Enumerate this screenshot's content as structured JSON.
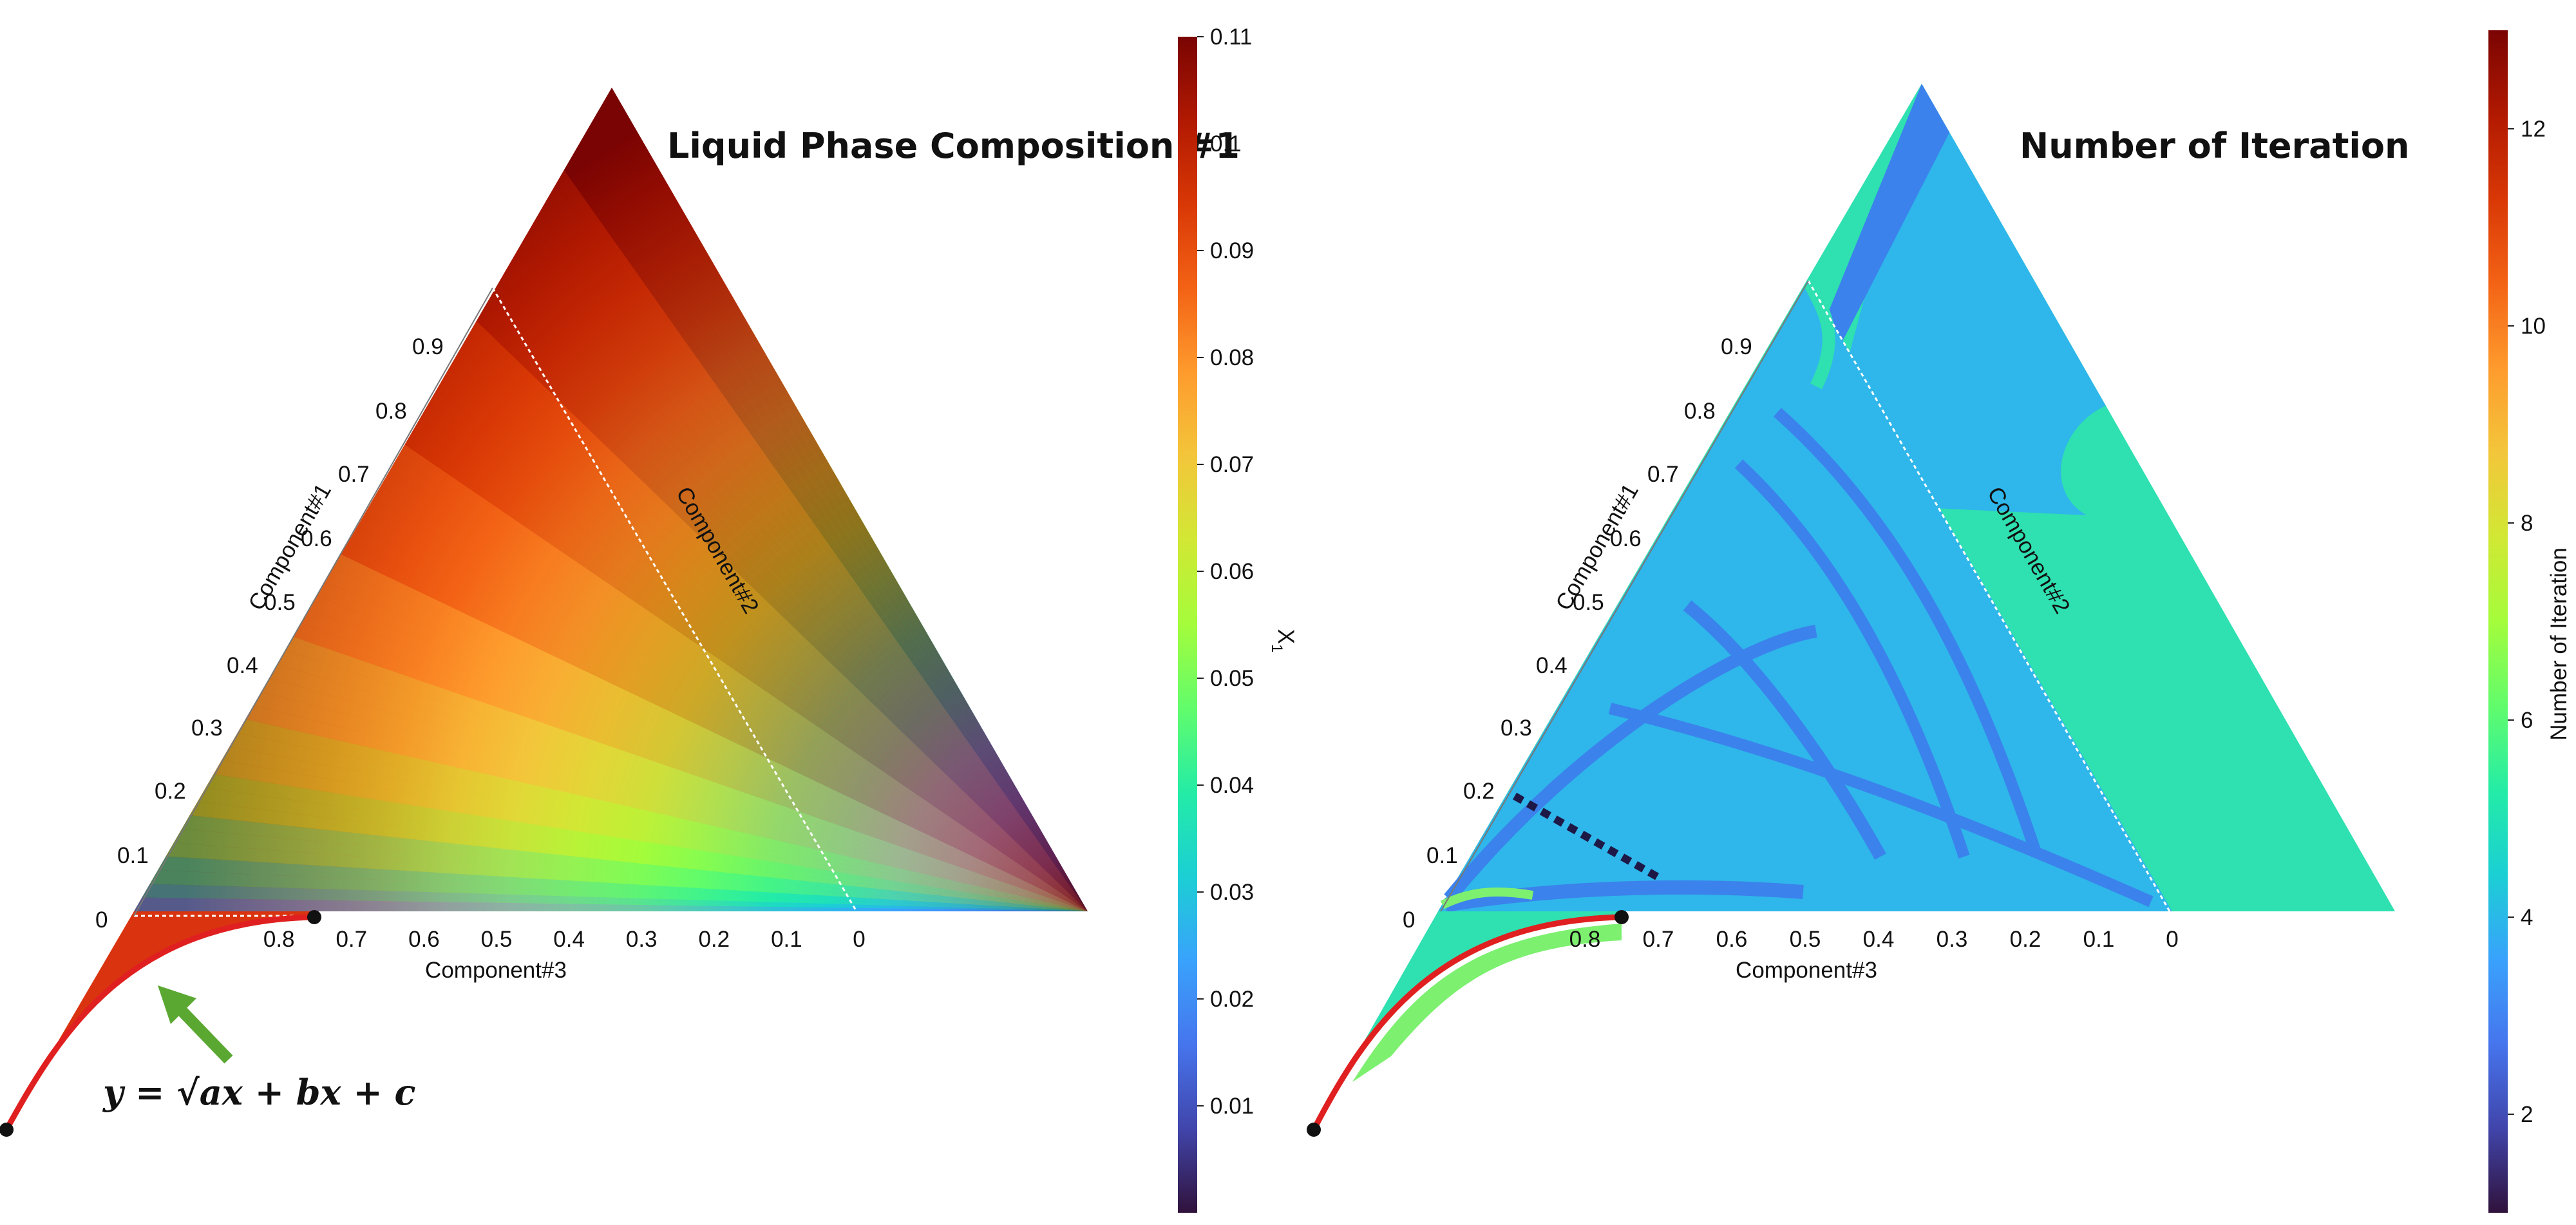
{
  "chart_data": [
    {
      "type": "heatmap",
      "plot": "ternary",
      "title": "Liquid Phase Composition #1",
      "colorbar": {
        "label": "X",
        "label_subscript": "1",
        "colormap": "turbo",
        "range": [
          0,
          0.11
        ],
        "ticks": [
          "0.01",
          "0.02",
          "0.03",
          "0.04",
          "0.05",
          "0.06",
          "0.07",
          "0.08",
          "0.09",
          "0.1",
          "0.11"
        ],
        "tick_values": [
          0.01,
          0.02,
          0.03,
          0.04,
          0.05,
          0.06,
          0.07,
          0.08,
          0.09,
          0.1,
          0.11
        ]
      },
      "axes": {
        "component1": {
          "label": "Component#1",
          "ticks": [
            "0",
            "0.1",
            "0.2",
            "0.3",
            "0.4",
            "0.5",
            "0.6",
            "0.7",
            "0.8",
            "0.9"
          ]
        },
        "component2": {
          "label": "Component#2"
        },
        "component3": {
          "label": "Component#3",
          "ticks": [
            "0.8",
            "0.7",
            "0.6",
            "0.5",
            "0.4",
            "0.3",
            "0.2",
            "0.1",
            "0"
          ],
          "tick_values": [
            0.8,
            0.7,
            0.6,
            0.5,
            0.4,
            0.3,
            0.2,
            0.1,
            0
          ]
        }
      },
      "annotation_formula": "y = √ax + bx + c",
      "curve_color": "#e02020",
      "arrow_color": "#5aa832"
    },
    {
      "type": "heatmap",
      "plot": "ternary",
      "title": "Number of Iteration",
      "colorbar": {
        "label": "Number of Iteration",
        "colormap": "turbo",
        "range": [
          1,
          13
        ],
        "ticks": [
          "2",
          "4",
          "6",
          "8",
          "10",
          "12"
        ],
        "tick_values": [
          2,
          4,
          6,
          8,
          10,
          12
        ]
      },
      "axes": {
        "component1": {
          "label": "Component#1",
          "ticks": [
            "0",
            "0.1",
            "0.2",
            "0.3",
            "0.4",
            "0.5",
            "0.6",
            "0.7",
            "0.8",
            "0.9"
          ]
        },
        "component2": {
          "label": "Component#2"
        },
        "component3": {
          "label": "Component#3",
          "ticks": [
            "0.8",
            "0.7",
            "0.6",
            "0.5",
            "0.4",
            "0.3",
            "0.2",
            "0.1",
            "0"
          ],
          "tick_values": [
            0.8,
            0.7,
            0.6,
            0.5,
            0.4,
            0.3,
            0.2,
            0.1,
            0
          ]
        }
      },
      "region_values": {
        "outer_region": 5,
        "inner_region": 4,
        "bands": 3,
        "diagonal_dashes": 1
      },
      "curve_color": "#e02020"
    }
  ]
}
